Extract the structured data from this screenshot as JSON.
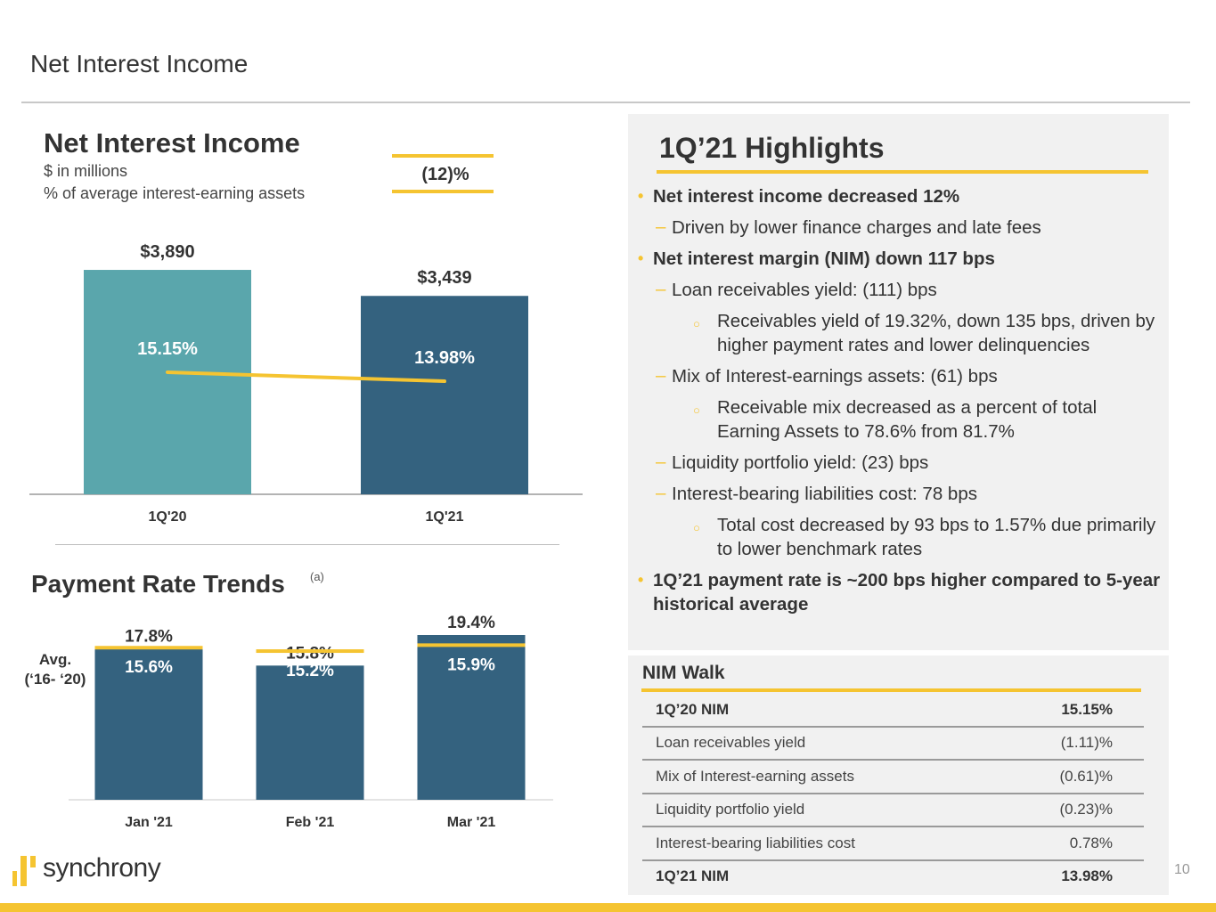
{
  "page": {
    "title": "Net Interest Income",
    "page_number": "10",
    "logo_text": "synchrony",
    "colors": {
      "accent": "#f5c431",
      "teal": "#5aa6ac",
      "navy": "#34627f",
      "panel": "#f1f1f1"
    }
  },
  "nii_panel": {
    "title": "Net Interest Income",
    "subtitle_1": "$ in millions",
    "subtitle_2": "% of average interest-earning assets",
    "change_label": "(12)%"
  },
  "payment_panel": {
    "title": "Payment Rate Trends",
    "footnote_marker": "(a)",
    "avg_label_1": "Avg.",
    "avg_label_2": "(‘16- ‘20)"
  },
  "chart_data": [
    {
      "type": "bar",
      "title": "Net Interest Income",
      "categories": [
        "1Q'20",
        "1Q'21"
      ],
      "series": [
        {
          "name": "Net Interest Income ($M)",
          "values": [
            3890,
            3439
          ],
          "labels": [
            "$3,890",
            "$3,439"
          ],
          "colors": [
            "#5aa6ac",
            "#34627f"
          ]
        },
        {
          "name": "% of average interest-earning assets",
          "type": "line",
          "values": [
            15.15,
            13.98
          ],
          "labels": [
            "15.15%",
            "13.98%"
          ],
          "color": "#f5c431"
        }
      ],
      "xlabel": "",
      "ylabel": "",
      "ylim": [
        0,
        4400
      ],
      "grid": false,
      "legend": "none"
    },
    {
      "type": "bar",
      "title": "Payment Rate Trends",
      "categories": [
        "Jan '21",
        "Feb '21",
        "Mar '21"
      ],
      "series": [
        {
          "name": "Payment rate",
          "values": [
            17.8,
            15.8,
            19.4
          ],
          "labels": [
            "17.8%",
            "15.8%",
            "19.4%"
          ],
          "color": "#34627f"
        },
        {
          "name": "Avg. ('16- '20)",
          "type": "marker",
          "values": [
            15.6,
            15.2,
            15.9
          ],
          "labels": [
            "15.6%",
            "15.2%",
            "15.9%"
          ],
          "color": "#f5c431"
        }
      ],
      "xlabel": "",
      "ylabel": "",
      "ylim": [
        0,
        20.5
      ],
      "grid": false,
      "legend": "left"
    }
  ],
  "highlights": {
    "title": "1Q’21 Highlights",
    "items": [
      {
        "level": 1,
        "text": "Net interest income decreased 12%"
      },
      {
        "level": 2,
        "text": "Driven by lower finance charges and late fees"
      },
      {
        "level": 1,
        "text": "Net interest margin (NIM) down 117 bps"
      },
      {
        "level": 2,
        "text": "Loan receivables yield: (111) bps"
      },
      {
        "level": 3,
        "text": "Receivables yield of 19.32%, down 135 bps, driven by higher payment rates and lower delinquencies"
      },
      {
        "level": 2,
        "text": "Mix of Interest-earnings assets: (61) bps"
      },
      {
        "level": 3,
        "text": "Receivable mix decreased as a percent of total Earning Assets to 78.6% from 81.7%"
      },
      {
        "level": 2,
        "text": "Liquidity portfolio yield: (23) bps"
      },
      {
        "level": 2,
        "text": "Interest-bearing liabilities cost: 78 bps"
      },
      {
        "level": 3,
        "text": "Total cost decreased by 93 bps to 1.57% due primarily to lower benchmark rates"
      },
      {
        "level": 1,
        "text": "1Q’21 payment rate is ~200 bps higher compared to 5-year historical average"
      }
    ]
  },
  "nim_walk": {
    "title": "NIM Walk",
    "rows": [
      {
        "label": "1Q’20 NIM",
        "value": "15.15%",
        "bold": true
      },
      {
        "label": "Loan receivables yield",
        "value": "(1.11)%",
        "bold": false
      },
      {
        "label": "Mix of Interest-earning assets",
        "value": "(0.61)%",
        "bold": false
      },
      {
        "label": "Liquidity portfolio yield",
        "value": "(0.23)%",
        "bold": false
      },
      {
        "label": "Interest-bearing liabilities cost",
        "value": "0.78%",
        "bold": false
      },
      {
        "label": "1Q’21 NIM",
        "value": "13.98%",
        "bold": true
      }
    ]
  }
}
